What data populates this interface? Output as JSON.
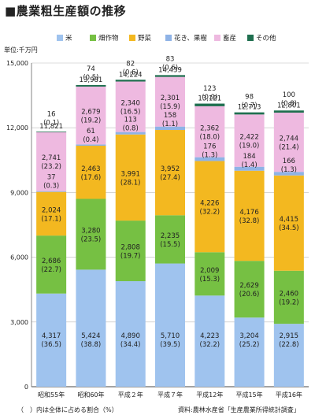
{
  "title": "■農業粗生産額の推移",
  "unit_label": "単位:千万円",
  "footnote": "（　）内は全体に占める割合（%）",
  "source": "資料:農林水産省「生産農業所得統計調査」",
  "chart_data": {
    "type": "bar",
    "stacked": true,
    "ylim": [
      0,
      15000
    ],
    "yticks": [
      "0",
      "3,000",
      "6,000",
      "9,000",
      "12,000",
      "15,000"
    ],
    "categories": [
      "昭和55年",
      "昭和60年",
      "平成２年",
      "平成７年",
      "平成12年",
      "平成15年",
      "平成16年"
    ],
    "totals": [
      "11,821",
      "13,981",
      "14,224",
      "14,439",
      "13,121",
      "12,713",
      "12,801"
    ],
    "total_values": [
      11821,
      13981,
      14224,
      14439,
      13121,
      12713,
      12801
    ],
    "legend": [
      "米",
      "畑作物",
      "野菜",
      "花き、果樹",
      "畜産",
      "その他"
    ],
    "series": [
      {
        "name": "米",
        "color": "#9fc3ee",
        "values": [
          4317,
          5424,
          4890,
          5710,
          4223,
          3204,
          2915
        ],
        "labels": [
          "4,317",
          "5,424",
          "4,890",
          "5,710",
          "4,223",
          "3,204",
          "2,915"
        ],
        "shares": [
          "(36.5)",
          "(38.8)",
          "(34.4)",
          "(39.5)",
          "(32.2)",
          "(25.2)",
          "(22.8)"
        ]
      },
      {
        "name": "畑作物",
        "color": "#76c043",
        "values": [
          2686,
          3280,
          2808,
          2235,
          2009,
          2629,
          2460
        ],
        "labels": [
          "2,686",
          "3,280",
          "2,808",
          "2,235",
          "2,009",
          "2,629",
          "2,460"
        ],
        "shares": [
          "(22.7)",
          "(23.5)",
          "(19.7)",
          "(15.5)",
          "(15.3)",
          "(20.6)",
          "(19.2)"
        ]
      },
      {
        "name": "野菜",
        "color": "#f3b820",
        "values": [
          2024,
          2463,
          3991,
          3952,
          4226,
          4176,
          4415
        ],
        "labels": [
          "2,024",
          "2,463",
          "3,991",
          "3,952",
          "4,226",
          "4,176",
          "4,415"
        ],
        "shares": [
          "(17.1)",
          "(17.6)",
          "(28.1)",
          "(27.4)",
          "(32.2)",
          "(32.8)",
          "(34.5)"
        ]
      },
      {
        "name": "花き、果樹",
        "color": "#8fb3e6",
        "values": [
          37,
          61,
          113,
          158,
          176,
          184,
          166
        ],
        "labels": [
          "37",
          "61",
          "113",
          "158",
          "176",
          "184",
          "166"
        ],
        "shares": [
          "(0.3)",
          "(0.4)",
          "(0.8)",
          "(1.1)",
          "(1.3)",
          "(1.4)",
          "(1.3)"
        ]
      },
      {
        "name": "畜産",
        "color": "#eeb9e0",
        "values": [
          2741,
          2679,
          2340,
          2301,
          2362,
          2422,
          2744
        ],
        "labels": [
          "2,741",
          "2,679",
          "2,340",
          "2,301",
          "2,362",
          "2,422",
          "2,744"
        ],
        "shares": [
          "(23.2)",
          "(19.2)",
          "(16.5)",
          "(15.9)",
          "(18.0)",
          "(19.0)",
          "(21.4)"
        ]
      },
      {
        "name": "その他",
        "color": "#1f6f4f",
        "values": [
          16,
          74,
          82,
          83,
          123,
          98,
          100
        ],
        "labels": [
          "16",
          "74",
          "82",
          "83",
          "123",
          "98",
          "100"
        ],
        "shares": [
          "(0.1)",
          "(0.5)",
          "(0.6)",
          "(0.6)",
          "(0.9)",
          "(0.7)",
          "(0.8)"
        ]
      }
    ],
    "grid": true,
    "legend_position": "top"
  }
}
